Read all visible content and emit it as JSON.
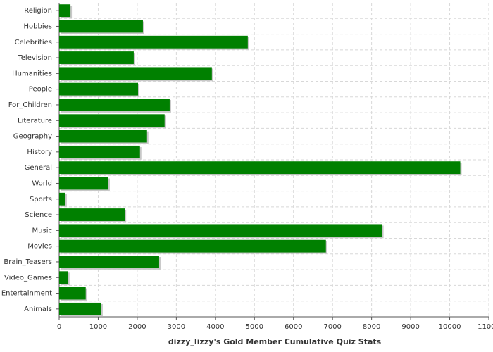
{
  "chart_data": {
    "type": "bar",
    "orientation": "horizontal",
    "title": "dizzy_lizzy's Gold Member Cumulative Quiz Stats",
    "categories": [
      "Religion",
      "Hobbies",
      "Celebrities",
      "Television",
      "Humanities",
      "People",
      "For_Children",
      "Literature",
      "Geography",
      "History",
      "General",
      "World",
      "Sports",
      "Science",
      "Music",
      "Movies",
      "Brain_Teasers",
      "Video_Games",
      "Entertainment",
      "Animals"
    ],
    "values": [
      290,
      2145,
      4830,
      1910,
      3910,
      2020,
      2830,
      2700,
      2250,
      2070,
      10270,
      1260,
      160,
      1680,
      8270,
      6830,
      2560,
      230,
      680,
      1080
    ],
    "color": "#008000",
    "xlim": [
      0,
      11000
    ],
    "xticks": [
      0,
      1000,
      2000,
      3000,
      4000,
      5000,
      6000,
      7000,
      8000,
      9000,
      10000,
      11000
    ],
    "grid": true
  }
}
